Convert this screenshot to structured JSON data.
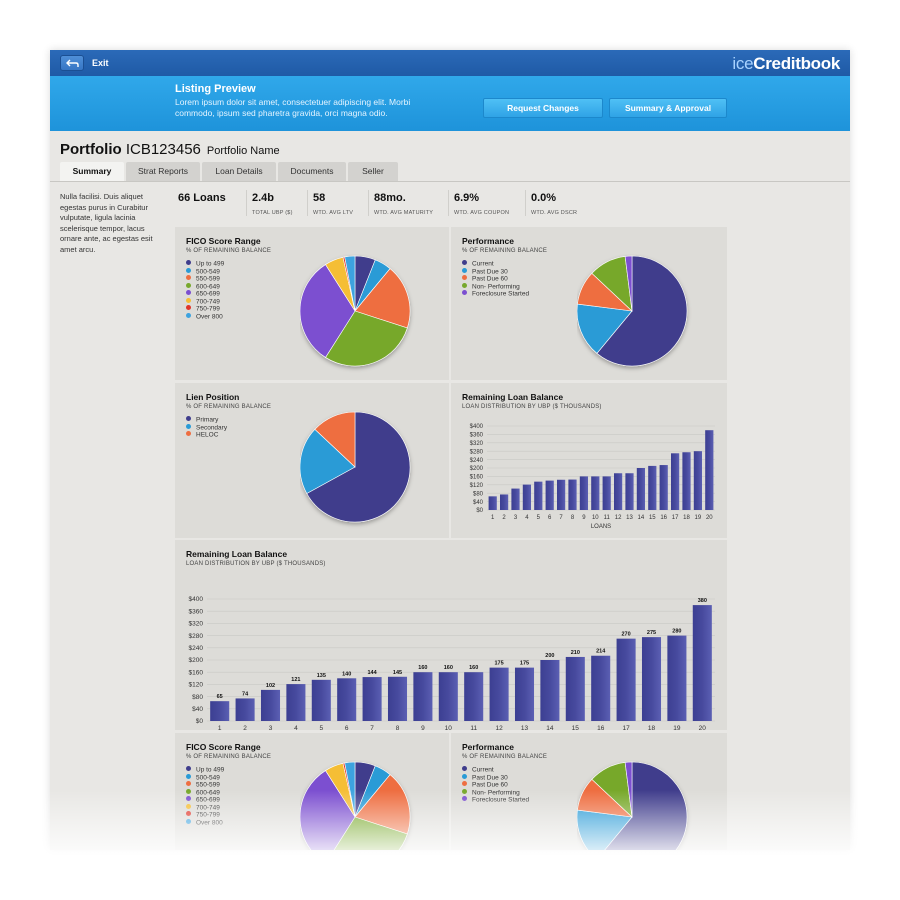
{
  "topbar": {
    "exit_label": "Exit",
    "brand_prefix": "ice",
    "brand_name": "Creditbook"
  },
  "banner": {
    "title": "Listing Preview",
    "text": "Lorem ipsum dolor sit amet, consectetuer adipiscing elit. Morbi commodo, ipsum sed pharetra gravida, orci magna odio.",
    "request_changes_label": "Request Changes",
    "summary_approval_label": "Summary & Approval"
  },
  "portfolio": {
    "label": "Portfolio",
    "id": "ICB123456",
    "name": "Portfolio Name"
  },
  "tabs": [
    {
      "label": "Summary",
      "active": true
    },
    {
      "label": "Strat Reports",
      "active": false
    },
    {
      "label": "Loan Details",
      "active": false
    },
    {
      "label": "Documents",
      "active": false
    },
    {
      "label": "Seller",
      "active": false
    }
  ],
  "sidenote": "Nulla facilisi. Duis aliquet egestas purus in Curabitur vulputate, ligula lacinia scelerisque tempor, lacus ornare ante, ac egestas esit amet arcu.",
  "stats": [
    {
      "value": "66 Loans",
      "label": ""
    },
    {
      "value": "2.4b",
      "label": "TOTAL UBP ($)"
    },
    {
      "value": "58",
      "label": "WTD. AVG LTV"
    },
    {
      "value": "88mo.",
      "label": "WTD. AVG MATURITY"
    },
    {
      "value": "6.9%",
      "label": "WTD. AVG COUPON"
    },
    {
      "value": "0.0%",
      "label": "WTD. AVG DSCR"
    }
  ],
  "panels": {
    "fico": {
      "title": "FICO Score Range",
      "subtitle": "% OF REMAINING BALANCE"
    },
    "performance": {
      "title": "Performance",
      "subtitle": "% OF REMAINING BALANCE"
    },
    "lien": {
      "title": "Lien Position",
      "subtitle": "% OF REMAINING BALANCE"
    },
    "balance_small": {
      "title": "Remaining Loan Balance",
      "subtitle": "LOAN DISTRIBUTION BY UBP ($ THOUSANDS)"
    },
    "balance_large": {
      "title": "Remaining Loan Balance",
      "subtitle": "LOAN DISTRIBUTION BY UBP ($ THOUSANDS)"
    },
    "fico2": {
      "title": "FICO Score Range",
      "subtitle": "% OF REMAINING BALANCE"
    },
    "performance2": {
      "title": "Performance",
      "subtitle": "% OF REMAINING BALANCE"
    }
  },
  "colors": {
    "navy": "#3f3d8c",
    "cyan": "#2a9bd6",
    "orange": "#ee6e41",
    "green": "#77a82c",
    "purple": "#7b4fd0",
    "yellow": "#f5be35",
    "red": "#e0352a",
    "lightblue": "#3da3df",
    "bar": "#474a9e"
  },
  "chart_data": [
    {
      "type": "pie",
      "title": "FICO Score Range",
      "subtitle": "% OF REMAINING BALANCE",
      "legend": [
        "Up to 499",
        "500-549",
        "550-599",
        "600-649",
        "650-699",
        "700-749",
        "750-799",
        "Over 800"
      ],
      "values": [
        6,
        5,
        19,
        29,
        32,
        5.5,
        0.5,
        3
      ],
      "colors": [
        "#3f3d8c",
        "#2a9bd6",
        "#ee6e41",
        "#77a82c",
        "#7b4fd0",
        "#f5be35",
        "#e0352a",
        "#3da3df"
      ]
    },
    {
      "type": "pie",
      "title": "Performance",
      "subtitle": "% OF REMAINING BALANCE",
      "legend": [
        "Current",
        "Past Due 30",
        "Past Due 60",
        "Non- Performing",
        "Foreclosure Started"
      ],
      "values": [
        61,
        16,
        10,
        11,
        2
      ],
      "colors": [
        "#3f3d8c",
        "#2a9bd6",
        "#ee6e41",
        "#77a82c",
        "#7b4fd0"
      ]
    },
    {
      "type": "pie",
      "title": "Lien Position",
      "subtitle": "% OF REMAINING BALANCE",
      "legend": [
        "Primary",
        "Secondary",
        "HELOC"
      ],
      "values": [
        67,
        20,
        13
      ],
      "colors": [
        "#3f3d8c",
        "#2a9bd6",
        "#ee6e41"
      ]
    },
    {
      "type": "bar",
      "title": "Remaining Loan Balance",
      "subtitle": "LOAN DISTRIBUTION BY UBP ($ THOUSANDS)",
      "xlabel": "LOANS",
      "categories": [
        "1",
        "2",
        "3",
        "4",
        "5",
        "6",
        "7",
        "8",
        "9",
        "10",
        "11",
        "12",
        "13",
        "14",
        "15",
        "16",
        "17",
        "18",
        "19",
        "20"
      ],
      "values": [
        65,
        74,
        102,
        121,
        135,
        140,
        144,
        145,
        160,
        160,
        160,
        175,
        175,
        200,
        210,
        214,
        270,
        275,
        280,
        380
      ],
      "yticks": [
        "$0",
        "$40",
        "$80",
        "$120",
        "$160",
        "$200",
        "$240",
        "$280",
        "$320",
        "$360",
        "$400"
      ],
      "ylim": [
        0,
        400
      ],
      "data_labels": false
    },
    {
      "type": "bar",
      "title": "Remaining Loan Balance",
      "subtitle": "LOAN DISTRIBUTION BY UBP ($ THOUSANDS)",
      "xlabel": "LOANS",
      "categories": [
        "1",
        "2",
        "3",
        "4",
        "5",
        "6",
        "7",
        "8",
        "9",
        "10",
        "11",
        "12",
        "13",
        "14",
        "15",
        "16",
        "17",
        "18",
        "19",
        "20"
      ],
      "values": [
        65,
        74,
        102,
        121,
        135,
        140,
        144,
        145,
        160,
        160,
        160,
        175,
        175,
        200,
        210,
        214,
        270,
        275,
        280,
        380
      ],
      "yticks": [
        "$0",
        "$40",
        "$80",
        "$120",
        "$160",
        "$200",
        "$240",
        "$280",
        "$320",
        "$360",
        "$400"
      ],
      "ylim": [
        0,
        400
      ],
      "data_labels": true
    },
    {
      "type": "pie",
      "title": "FICO Score Range",
      "subtitle": "% OF REMAINING BALANCE",
      "legend": [
        "Up to 499",
        "500-549",
        "550-599",
        "600-649",
        "650-699",
        "700-749",
        "750-799",
        "Over 800"
      ],
      "values": [
        6,
        5,
        19,
        29,
        32,
        5.5,
        0.5,
        3
      ],
      "colors": [
        "#3f3d8c",
        "#2a9bd6",
        "#ee6e41",
        "#77a82c",
        "#7b4fd0",
        "#f5be35",
        "#e0352a",
        "#3da3df"
      ]
    },
    {
      "type": "pie",
      "title": "Performance",
      "subtitle": "% OF REMAINING BALANCE",
      "legend": [
        "Current",
        "Past Due 30",
        "Past Due 60",
        "Non- Performing",
        "Foreclosure Started"
      ],
      "values": [
        61,
        16,
        10,
        11,
        2
      ],
      "colors": [
        "#3f3d8c",
        "#2a9bd6",
        "#ee6e41",
        "#77a82c",
        "#7b4fd0"
      ]
    }
  ]
}
